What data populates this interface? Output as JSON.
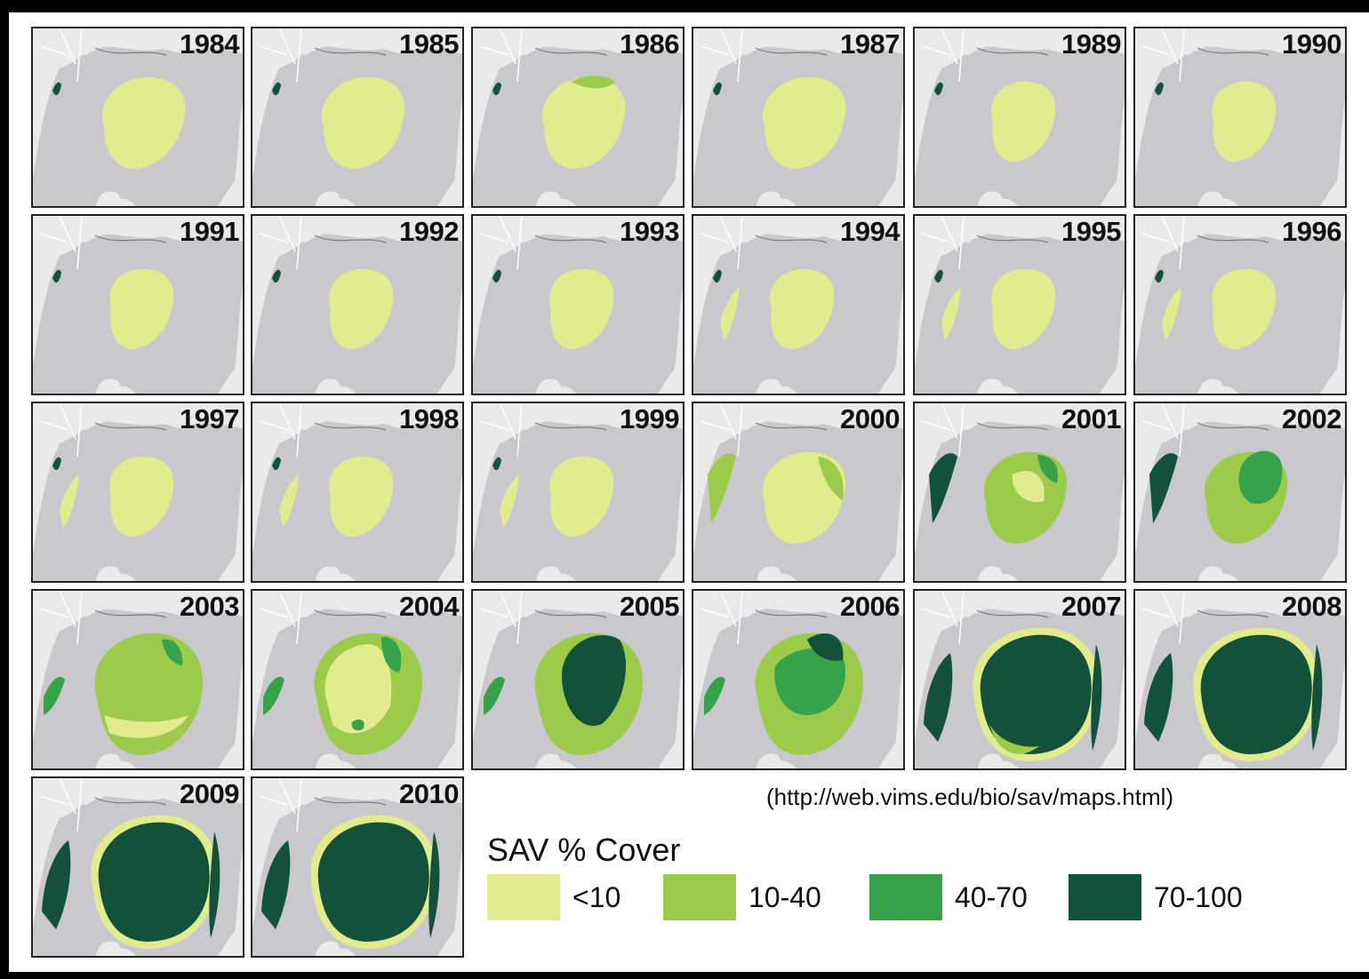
{
  "colors": {
    "land": "#eaeaeb",
    "water": "#c9c8cd",
    "roads": "#ffffff",
    "class_lt10": "#e2ec8e",
    "class_10_40": "#9ccb4b",
    "class_40_70": "#36a24a",
    "class_70_100": "#14513b"
  },
  "panels": [
    {
      "year": "1984",
      "classes": [
        "lt10"
      ]
    },
    {
      "year": "1985",
      "classes": [
        "lt10"
      ]
    },
    {
      "year": "1986",
      "classes": [
        "lt10",
        "10_40"
      ]
    },
    {
      "year": "1987",
      "classes": [
        "lt10"
      ]
    },
    {
      "year": "1989",
      "classes": [
        "lt10"
      ]
    },
    {
      "year": "1990",
      "classes": [
        "lt10"
      ]
    },
    {
      "year": "1991",
      "classes": [
        "lt10"
      ]
    },
    {
      "year": "1992",
      "classes": [
        "lt10"
      ]
    },
    {
      "year": "1993",
      "classes": [
        "lt10"
      ]
    },
    {
      "year": "1994",
      "classes": [
        "lt10"
      ]
    },
    {
      "year": "1995",
      "classes": [
        "lt10"
      ]
    },
    {
      "year": "1996",
      "classes": [
        "lt10"
      ]
    },
    {
      "year": "1997",
      "classes": [
        "lt10"
      ]
    },
    {
      "year": "1998",
      "classes": [
        "lt10"
      ]
    },
    {
      "year": "1999",
      "classes": [
        "lt10"
      ]
    },
    {
      "year": "2000",
      "classes": [
        "lt10",
        "10_40"
      ]
    },
    {
      "year": "2001",
      "classes": [
        "lt10",
        "10_40",
        "40_70"
      ]
    },
    {
      "year": "2002",
      "classes": [
        "10_40",
        "40_70"
      ]
    },
    {
      "year": "2003",
      "classes": [
        "lt10",
        "10_40",
        "40_70"
      ]
    },
    {
      "year": "2004",
      "classes": [
        "lt10",
        "10_40",
        "40_70"
      ]
    },
    {
      "year": "2005",
      "classes": [
        "10_40",
        "70_100"
      ]
    },
    {
      "year": "2006",
      "classes": [
        "10_40",
        "40_70",
        "70_100"
      ]
    },
    {
      "year": "2007",
      "classes": [
        "10_40",
        "70_100"
      ]
    },
    {
      "year": "2008",
      "classes": [
        "lt10",
        "70_100"
      ]
    },
    {
      "year": "2009",
      "classes": [
        "lt10",
        "70_100"
      ]
    },
    {
      "year": "2010",
      "classes": [
        "lt10",
        "70_100"
      ]
    }
  ],
  "source": "(http://web.vims.edu/bio/sav/maps.html)",
  "legend": {
    "title": "SAV % Cover",
    "items": [
      {
        "label": "<10",
        "color": "#e2ec8e"
      },
      {
        "label": "10-40",
        "color": "#9ccb4b"
      },
      {
        "label": "40-70",
        "color": "#36a24a"
      },
      {
        "label": "70-100",
        "color": "#14513b"
      }
    ]
  }
}
